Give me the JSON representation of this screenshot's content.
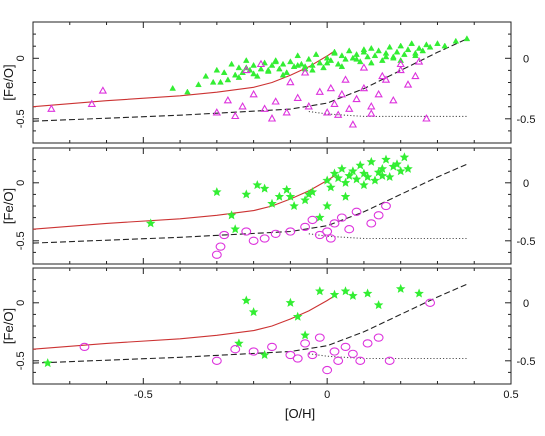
{
  "chart_data": [
    {
      "type": "scatter",
      "panel": "top",
      "ylabel": "[Fe/O]",
      "xlabel": "",
      "xlim": [
        -0.8,
        0.5
      ],
      "ylim": [
        -0.7,
        0.3
      ],
      "yticks": [
        0,
        -0.5
      ],
      "ytick_labels": [
        "0",
        "-0.5"
      ],
      "right_ytick_labels": [
        "0",
        "-0.5"
      ],
      "xticks": [
        -0.5,
        0,
        0.5
      ],
      "series": [
        {
          "marker": "filled-triangle",
          "color": "#33ee33",
          "x": [
            -0.42,
            -0.38,
            -0.35,
            -0.33,
            -0.31,
            -0.3,
            -0.28,
            -0.27,
            -0.26,
            -0.25,
            -0.24,
            -0.23,
            -0.22,
            -0.21,
            -0.2,
            -0.19,
            -0.18,
            -0.17,
            -0.16,
            -0.15,
            -0.14,
            -0.13,
            -0.12,
            -0.11,
            -0.1,
            -0.09,
            -0.08,
            -0.07,
            -0.06,
            -0.05,
            -0.04,
            -0.03,
            -0.02,
            -0.01,
            0.0,
            0.01,
            0.02,
            0.03,
            0.04,
            0.05,
            0.06,
            0.07,
            0.08,
            0.09,
            0.1,
            0.11,
            0.12,
            0.13,
            0.14,
            0.15,
            0.16,
            0.17,
            0.18,
            0.19,
            0.2,
            0.21,
            0.22,
            0.23,
            0.24,
            0.25,
            0.26,
            0.27,
            0.28,
            0.3,
            0.32,
            0.35,
            0.38,
            -0.29,
            -0.24,
            -0.2,
            -0.16,
            -0.12,
            -0.08,
            -0.04,
            0.0,
            0.04,
            0.08,
            0.12,
            0.16,
            0.2,
            0.24,
            -0.22,
            -0.14,
            -0.06,
            0.02,
            0.1,
            0.18
          ],
          "y": [
            -0.25,
            -0.28,
            -0.22,
            -0.15,
            -0.2,
            -0.1,
            -0.12,
            -0.18,
            -0.05,
            -0.14,
            -0.08,
            -0.12,
            -0.02,
            -0.1,
            -0.06,
            -0.15,
            -0.09,
            -0.04,
            -0.11,
            -0.06,
            -0.02,
            -0.09,
            -0.05,
            -0.12,
            -0.03,
            -0.07,
            0.02,
            -0.05,
            -0.09,
            -0.01,
            -0.06,
            0.03,
            -0.04,
            -0.08,
            0.0,
            -0.02,
            0.05,
            -0.05,
            0.02,
            -0.01,
            0.06,
            0.0,
            0.03,
            -0.03,
            0.05,
            0.01,
            0.08,
            0.02,
            0.06,
            -0.02,
            0.04,
            0.09,
            0.01,
            0.05,
            0.1,
            0.03,
            0.07,
            0.12,
            0.02,
            0.08,
            0.06,
            0.11,
            0.09,
            0.12,
            0.1,
            0.14,
            0.16,
            -0.2,
            -0.16,
            -0.13,
            -0.1,
            -0.14,
            -0.06,
            -0.1,
            -0.04,
            -0.07,
            -0.01,
            -0.04,
            0.01,
            -0.02,
            0.04,
            -0.08,
            -0.03,
            -0.07,
            0.04,
            0.07,
            0.0
          ]
        },
        {
          "marker": "open-triangle",
          "color": "#dd33dd",
          "x": [
            -0.75,
            -0.64,
            -0.61,
            -0.3,
            -0.27,
            -0.23,
            -0.2,
            -0.17,
            -0.14,
            -0.11,
            -0.08,
            -0.05,
            -0.02,
            0.0,
            0.02,
            0.04,
            0.06,
            0.08,
            0.1,
            0.12,
            0.14,
            0.16,
            0.18,
            0.2,
            0.22,
            0.24,
            0.27,
            -0.22,
            -0.18,
            -0.1,
            -0.06,
            0.01,
            0.05,
            0.1,
            0.15,
            0.2,
            -0.25,
            -0.15,
            0.03,
            0.07,
            0.12,
            0.25
          ],
          "y": [
            -0.42,
            -0.38,
            -0.27,
            -0.45,
            -0.35,
            -0.4,
            -0.3,
            -0.42,
            -0.36,
            -0.45,
            -0.33,
            -0.4,
            -0.28,
            -0.45,
            -0.38,
            -0.3,
            -0.42,
            -0.34,
            -0.25,
            -0.4,
            -0.3,
            -0.18,
            -0.35,
            -0.1,
            -0.22,
            -0.15,
            -0.5,
            -0.1,
            -0.05,
            -0.2,
            -0.12,
            -0.25,
            -0.18,
            -0.08,
            -0.15,
            -0.05,
            -0.48,
            -0.5,
            -0.47,
            -0.55,
            -0.46,
            -0.03
          ]
        }
      ]
    },
    {
      "type": "scatter",
      "panel": "middle",
      "ylabel": "[Fe/O]",
      "xlabel": "",
      "xlim": [
        -0.8,
        0.5
      ],
      "ylim": [
        -0.7,
        0.3
      ],
      "yticks": [
        0,
        -0.5
      ],
      "ytick_labels": [
        "0",
        "-0.5"
      ],
      "right_ytick_labels": [
        "0",
        "-0.5"
      ],
      "xticks": [
        -0.5,
        0,
        0.5
      ],
      "series": [
        {
          "marker": "filled-star",
          "color": "#33ee33",
          "x": [
            -0.48,
            -0.3,
            -0.26,
            -0.22,
            -0.19,
            -0.17,
            -0.15,
            -0.13,
            -0.11,
            -0.09,
            -0.06,
            -0.04,
            -0.02,
            0.0,
            0.01,
            0.02,
            0.03,
            0.04,
            0.05,
            0.06,
            0.07,
            0.08,
            0.09,
            0.1,
            0.11,
            0.12,
            0.13,
            0.14,
            0.15,
            0.16,
            0.17,
            0.18,
            0.19,
            0.2,
            0.21,
            0.22,
            -0.05,
            0.0,
            0.05,
            0.1,
            0.15,
            -0.1,
            -0.25
          ],
          "y": [
            -0.35,
            -0.08,
            -0.28,
            -0.1,
            -0.02,
            -0.05,
            -0.18,
            -0.12,
            -0.06,
            -0.2,
            -0.15,
            -0.08,
            -0.3,
            0.02,
            -0.04,
            0.08,
            0.04,
            0.12,
            0.0,
            0.06,
            0.1,
            0.03,
            0.15,
            0.08,
            0.05,
            0.18,
            0.02,
            0.09,
            0.12,
            0.2,
            0.05,
            0.14,
            0.16,
            0.1,
            0.22,
            0.12,
            -0.1,
            -0.2,
            -0.12,
            -0.02,
            0.06,
            -0.12,
            -0.4
          ]
        },
        {
          "marker": "open-circle",
          "color": "#dd33dd",
          "x": [
            -0.3,
            -0.29,
            -0.28,
            -0.2,
            -0.17,
            -0.14,
            -0.1,
            -0.06,
            -0.04,
            -0.02,
            0.0,
            0.01,
            0.02,
            0.04,
            0.06,
            0.08,
            0.12,
            0.14,
            0.16,
            -0.22
          ],
          "y": [
            -0.62,
            -0.55,
            -0.45,
            -0.5,
            -0.48,
            -0.44,
            -0.42,
            -0.38,
            -0.32,
            -0.45,
            -0.42,
            -0.48,
            -0.35,
            -0.3,
            -0.4,
            -0.25,
            -0.35,
            -0.28,
            -0.2,
            -0.42
          ]
        }
      ]
    },
    {
      "type": "scatter",
      "panel": "bottom",
      "ylabel": "[Fe/O]",
      "xlabel": "[O/H]",
      "xlim": [
        -0.8,
        0.5
      ],
      "ylim": [
        -0.7,
        0.3
      ],
      "yticks": [
        0,
        -0.5
      ],
      "ytick_labels": [
        "0",
        "-0.5"
      ],
      "right_ytick_labels": [
        "0",
        "-0.5"
      ],
      "xticks": [
        -0.5,
        0,
        0.5
      ],
      "xtick_labels": [
        "-0.5",
        "0",
        "0.5"
      ],
      "series": [
        {
          "marker": "filled-star",
          "color": "#33ee33",
          "x": [
            -0.76,
            -0.24,
            -0.22,
            -0.2,
            -0.17,
            -0.1,
            -0.08,
            -0.02,
            0.02,
            0.05,
            0.07,
            0.11,
            0.14,
            0.2,
            0.25,
            -0.06
          ],
          "y": [
            -0.52,
            -0.35,
            0.02,
            -0.08,
            -0.45,
            0.0,
            -0.12,
            0.1,
            0.07,
            0.1,
            0.06,
            0.08,
            -0.02,
            0.12,
            0.08,
            -0.28
          ]
        },
        {
          "marker": "open-circle",
          "color": "#dd33dd",
          "x": [
            -0.66,
            -0.3,
            -0.25,
            -0.2,
            -0.15,
            -0.1,
            -0.08,
            -0.06,
            -0.04,
            -0.02,
            0.0,
            0.02,
            0.03,
            0.05,
            0.07,
            0.09,
            0.11,
            0.14,
            0.17,
            0.28
          ],
          "y": [
            -0.38,
            -0.5,
            -0.4,
            -0.42,
            -0.38,
            -0.45,
            -0.48,
            -0.35,
            -0.45,
            -0.3,
            -0.58,
            -0.42,
            -0.5,
            -0.38,
            -0.44,
            -0.5,
            -0.35,
            -0.3,
            -0.5,
            0.0
          ]
        }
      ]
    }
  ],
  "model_curves": {
    "red_solid": {
      "color": "#cc3333",
      "x": [
        -0.8,
        -0.6,
        -0.4,
        -0.3,
        -0.2,
        -0.15,
        -0.1,
        -0.05,
        0.0,
        0.02
      ],
      "y": [
        -0.4,
        -0.35,
        -0.31,
        -0.28,
        -0.24,
        -0.2,
        -0.14,
        -0.07,
        0.02,
        0.06
      ]
    },
    "black_dashed": {
      "color": "#222222",
      "x": [
        -0.8,
        -0.4,
        -0.1,
        0.0,
        0.1,
        0.2,
        0.3,
        0.38
      ],
      "y": [
        -0.52,
        -0.47,
        -0.42,
        -0.37,
        -0.25,
        -0.1,
        0.05,
        0.16
      ]
    },
    "black_dotted": {
      "color": "#555555",
      "x": [
        -0.05,
        0.0,
        0.1,
        0.2,
        0.3,
        0.38
      ],
      "y": [
        -0.44,
        -0.46,
        -0.48,
        -0.48,
        -0.48,
        -0.48
      ]
    }
  }
}
